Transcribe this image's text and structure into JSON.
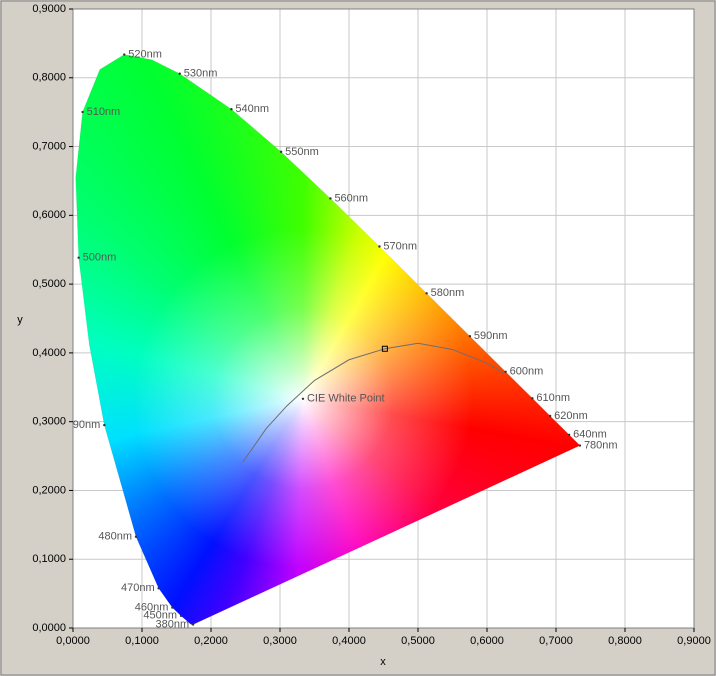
{
  "chart_data": {
    "type": "chromaticity",
    "x_label": "x",
    "y_label": "y",
    "xlim": [
      0,
      0.9
    ],
    "ylim": [
      0,
      0.9
    ],
    "xticks": [
      {
        "value": 0,
        "label": "0,0000"
      },
      {
        "value": 0.1,
        "label": "0,1000"
      },
      {
        "value": 0.2,
        "label": "0,2000"
      },
      {
        "value": 0.3,
        "label": "0,3000"
      },
      {
        "value": 0.4,
        "label": "0,4000"
      },
      {
        "value": 0.5,
        "label": "0,5000"
      },
      {
        "value": 0.6,
        "label": "0,6000"
      },
      {
        "value": 0.7,
        "label": "0,7000"
      },
      {
        "value": 0.8,
        "label": "0,8000"
      },
      {
        "value": 0.9,
        "label": "0,9000"
      }
    ],
    "yticks": [
      {
        "value": 0,
        "label": "0,0000"
      },
      {
        "value": 0.1,
        "label": "0,1000"
      },
      {
        "value": 0.2,
        "label": "0,2000"
      },
      {
        "value": 0.3,
        "label": "0,3000"
      },
      {
        "value": 0.4,
        "label": "0,4000"
      },
      {
        "value": 0.5,
        "label": "0,5000"
      },
      {
        "value": 0.6,
        "label": "0,6000"
      },
      {
        "value": 0.7,
        "label": "0,7000"
      },
      {
        "value": 0.8,
        "label": "0,8000"
      },
      {
        "value": 0.9,
        "label": "0,9000"
      }
    ],
    "grid": true,
    "locus": {
      "labels": [
        "380nm",
        null,
        null,
        null,
        null,
        null,
        null,
        "450nm",
        "460nm",
        "470nm",
        "480nm",
        "490nm",
        null,
        "500nm",
        null,
        "510nm",
        null,
        "520nm",
        null,
        "530nm",
        "540nm",
        "550nm",
        "560nm",
        "570nm",
        "580nm",
        "590nm",
        "600nm",
        "610nm",
        "620nm",
        null,
        "640nm",
        null,
        null,
        null,
        null,
        "780nm"
      ],
      "x": [
        0.1741,
        0.1738,
        0.1733,
        0.1726,
        0.1714,
        0.1689,
        0.1644,
        0.1566,
        0.144,
        0.1241,
        0.0913,
        0.0454,
        0.0235,
        0.0082,
        0.0039,
        0.0139,
        0.0389,
        0.0743,
        0.1142,
        0.1547,
        0.2296,
        0.3016,
        0.3731,
        0.4441,
        0.5125,
        0.5752,
        0.627,
        0.6658,
        0.6915,
        0.7079,
        0.719,
        0.726,
        0.73,
        0.7334,
        0.7347,
        0.7347
      ],
      "y": [
        0.005,
        0.0049,
        0.0048,
        0.0048,
        0.0051,
        0.0069,
        0.0109,
        0.0177,
        0.0297,
        0.0578,
        0.1327,
        0.295,
        0.4127,
        0.5384,
        0.6548,
        0.7502,
        0.812,
        0.8338,
        0.8262,
        0.8059,
        0.7543,
        0.6923,
        0.6245,
        0.5547,
        0.4866,
        0.4242,
        0.3725,
        0.334,
        0.3083,
        0.292,
        0.2809,
        0.274,
        0.27,
        0.2666,
        0.2653,
        0.2653
      ]
    },
    "planckian": {
      "color": "#6e6e6e",
      "x": [
        0.246,
        0.28,
        0.31,
        0.35,
        0.4,
        0.452,
        0.5,
        0.55,
        0.6,
        0.625
      ],
      "y": [
        0.241,
        0.29,
        0.323,
        0.36,
        0.39,
        0.406,
        0.414,
        0.405,
        0.385,
        0.37
      ]
    },
    "cursor": {
      "x": 0.452,
      "y": 0.406
    },
    "white_point": {
      "x": 0.3333,
      "y": 0.3333,
      "label": "CIE White Point"
    }
  }
}
